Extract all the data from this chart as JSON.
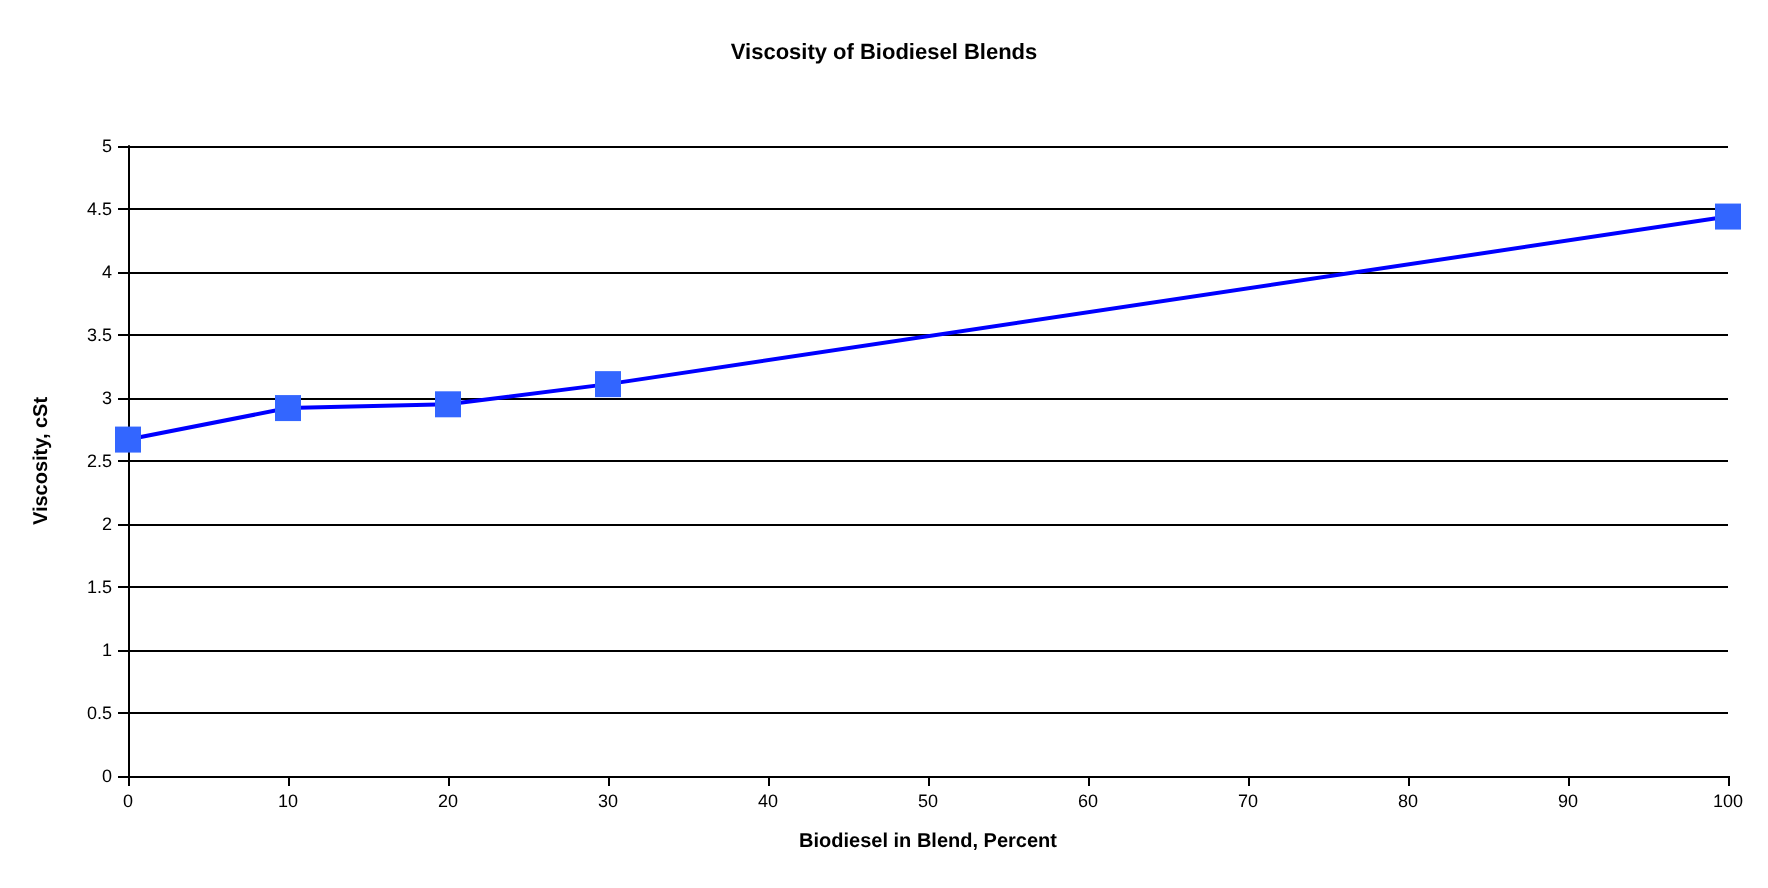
{
  "chart_data": {
    "type": "line",
    "title": "Viscosity of Biodiesel Blends",
    "xlabel": "Biodiesel in Blend, Percent",
    "ylabel": "Viscosity, cSt",
    "x": [
      0,
      10,
      20,
      30,
      100
    ],
    "series": [
      {
        "color": "#0000ff",
        "values": [
          2.67,
          2.92,
          2.95,
          3.11,
          4.44
        ]
      }
    ],
    "xlim": [
      0,
      100
    ],
    "xticks": [
      0,
      10,
      20,
      30,
      40,
      50,
      60,
      70,
      80,
      90,
      100
    ],
    "ylim": [
      0,
      5
    ],
    "yticks": [
      0,
      0.5,
      1,
      1.5,
      2,
      2.5,
      3,
      3.5,
      4,
      4.5,
      5
    ],
    "grid": "y",
    "marker": "square",
    "line_style": "solid"
  }
}
